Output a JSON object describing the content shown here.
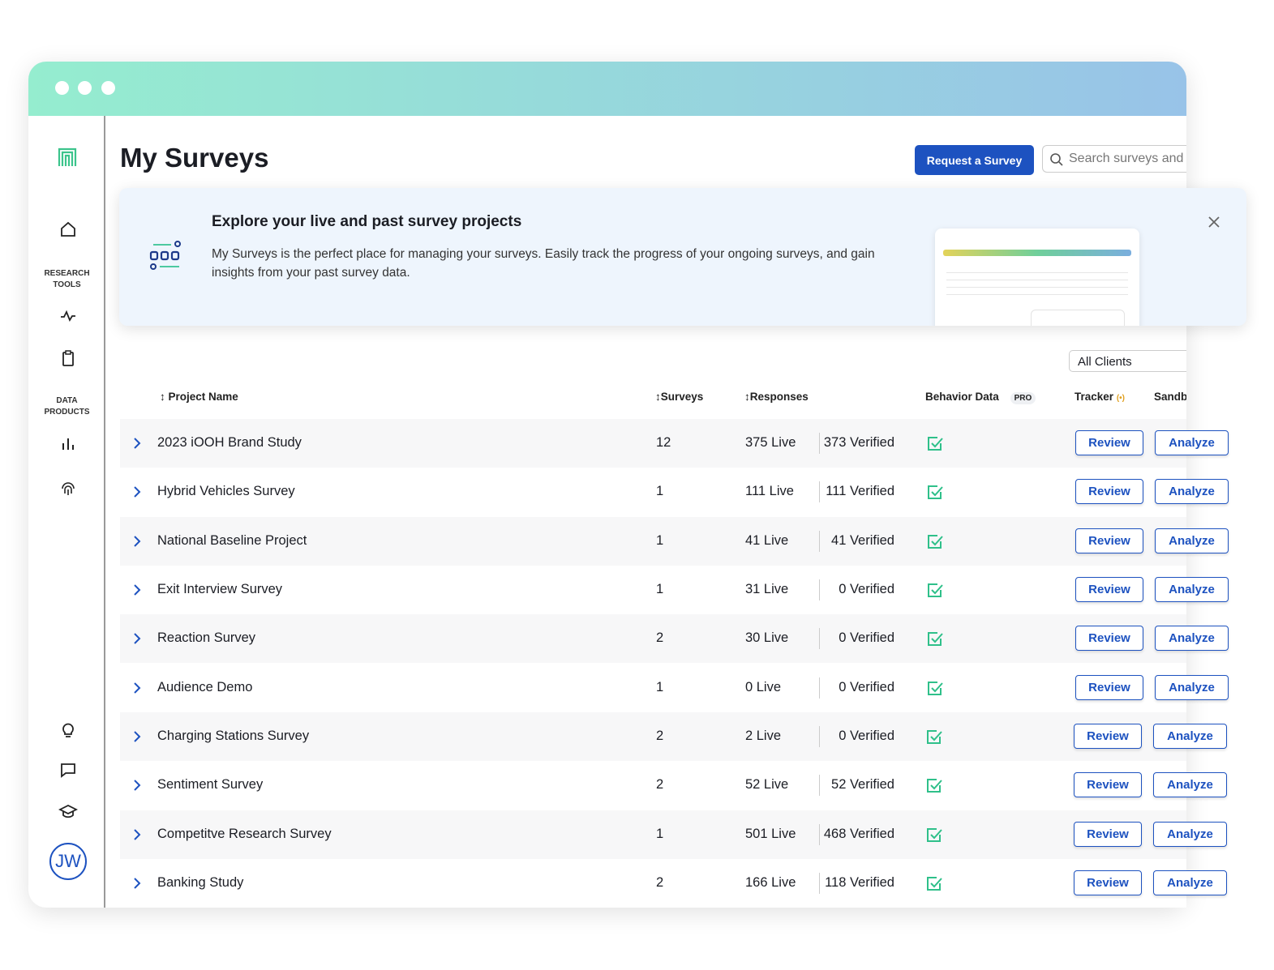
{
  "header": {
    "title": "My Surveys",
    "button": "Request a Survey",
    "search": "Search surveys and"
  },
  "sidebar": {
    "group1": [
      "RESEARCH",
      "TOOLS"
    ],
    "group2": [
      "DATA",
      "PRODUCTS"
    ],
    "avatar": "JW"
  },
  "banner": {
    "title": "Explore your live and past survey projects",
    "body": "My Surveys is the perfect place for managing your surveys. Easily track the progress of your ongoing surveys, and gain insights from your past survey data."
  },
  "filter": "All Clients",
  "table": {
    "columns": [
      "Project Name",
      "Surveys",
      "Responses",
      "Behavior Data",
      "Tracker",
      "Sandb"
    ],
    "pro": "PRO",
    "actions": [
      "Review",
      "Analyze"
    ],
    "rows": [
      [
        "2023 iOOH Brand Study",
        "12",
        "375 Live",
        "373 Verified"
      ],
      [
        "Hybrid Vehicles Survey",
        "1",
        "111 Live",
        "111 Verified"
      ],
      [
        "National Baseline Project",
        "1",
        "41 Live",
        "41 Verified"
      ],
      [
        "Exit Interview Survey",
        "1",
        "31 Live",
        "0 Verified"
      ],
      [
        "Reaction Survey",
        "2",
        "30 Live",
        "0 Verified"
      ],
      [
        "Audience Demo",
        "1",
        "0 Live",
        "0 Verified"
      ],
      [
        "Charging Stations Survey",
        "2",
        "2 Live",
        "0 Verified"
      ],
      [
        "Sentiment Survey",
        "2",
        "52 Live",
        "52 Verified"
      ],
      [
        "Competitve Research Survey",
        "1",
        "501 Live",
        "468 Verified"
      ],
      [
        "Banking Study",
        "2",
        "166 Live",
        "118 Verified"
      ]
    ]
  }
}
